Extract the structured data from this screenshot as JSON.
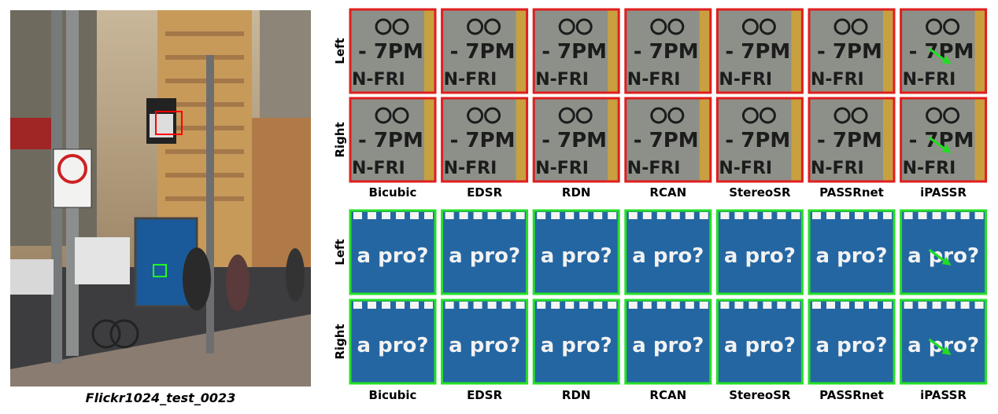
{
  "figure": {
    "image_caption": "Flickr1024_test_0023",
    "groups": [
      {
        "row_labels": [
          "Left",
          "Right"
        ],
        "methods": [
          "Bicubic",
          "EDSR",
          "RDN",
          "RCAN",
          "StereoSR",
          "PASSRnet",
          "iPASSR"
        ],
        "patch_lines": [
          "- 7PM",
          "N-FRI"
        ]
      },
      {
        "row_labels": [
          "Left",
          "Right"
        ],
        "methods": [
          "Bicubic",
          "EDSR",
          "RDN",
          "RCAN",
          "StereoSR",
          "PASSRnet",
          "iPASSR"
        ],
        "patch_lines": [
          "a pro?"
        ]
      }
    ]
  }
}
